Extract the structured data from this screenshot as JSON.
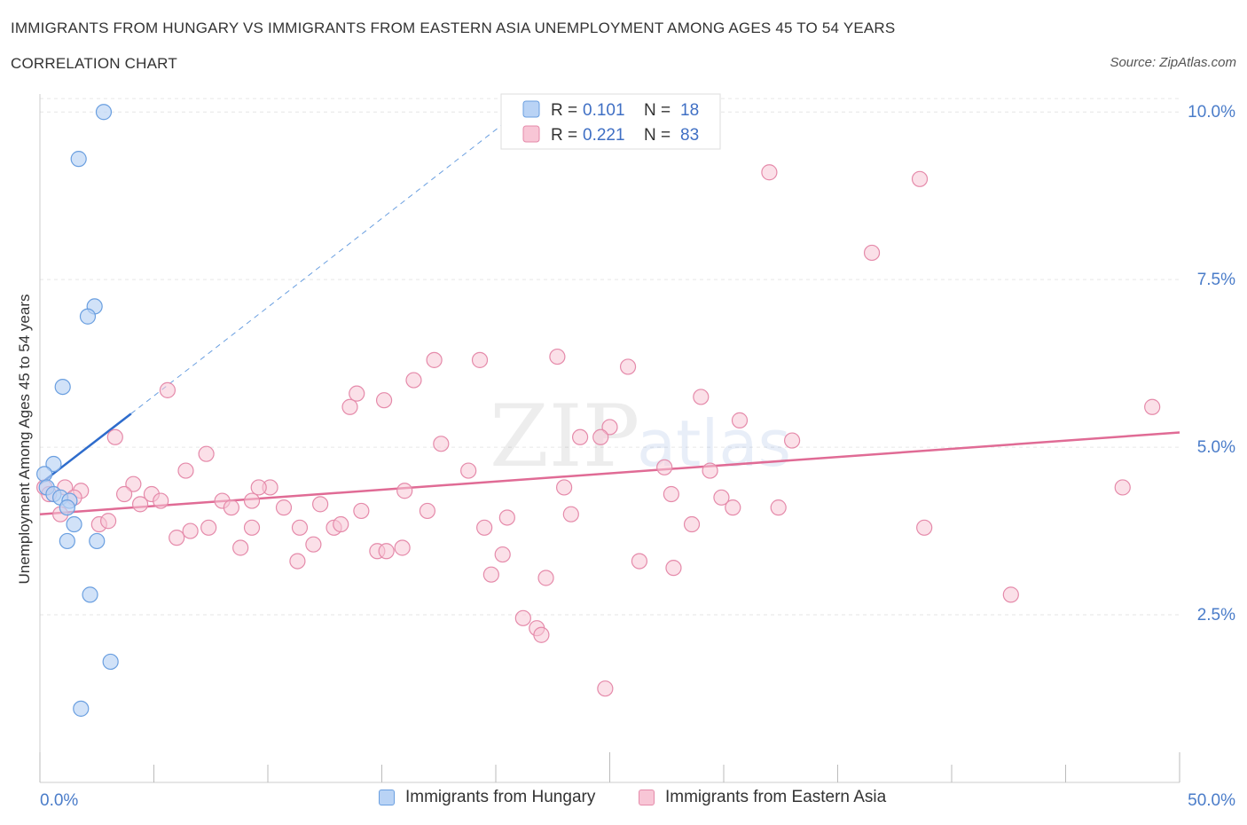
{
  "header": {
    "title": "IMMIGRANTS FROM HUNGARY VS IMMIGRANTS FROM EASTERN ASIA UNEMPLOYMENT AMONG AGES 45 TO 54 YEARS",
    "subtitle": "CORRELATION CHART",
    "source": "Source: ZipAtlas.com"
  },
  "colors": {
    "hungary_fill": "#b9d3f5",
    "hungary_stroke": "#6a9fe0",
    "hungary_line": "#2e6ccc",
    "asia_fill": "#f8c6d6",
    "asia_stroke": "#e58aaa",
    "asia_line": "#e06b95",
    "axis_label": "#4a7cc9",
    "grid": "#e6e6e6"
  },
  "legend_top": {
    "rows": [
      {
        "r_label": "R =",
        "r_value": "0.101",
        "n_label": "N =",
        "n_value": "18"
      },
      {
        "r_label": "R =",
        "r_value": "0.221",
        "n_label": "N =",
        "n_value": "83"
      }
    ]
  },
  "legend_bottom": {
    "items": [
      "Immigrants from Hungary",
      "Immigrants from Eastern Asia"
    ]
  },
  "watermark": {
    "zip": "ZIP",
    "atlas": "atlas"
  },
  "chart_data": {
    "type": "scatter",
    "title": "IMMIGRANTS FROM HUNGARY VS IMMIGRANTS FROM EASTERN ASIA UNEMPLOYMENT AMONG AGES 45 TO 54 YEARS",
    "ylabel": "Unemployment Among Ages 45 to 54 years",
    "xlabel": "",
    "xlim": [
      0,
      50
    ],
    "ylim": [
      0,
      10.4
    ],
    "x_tick_labels": [
      "0.0%",
      "50.0%"
    ],
    "y_ticks": [
      2.5,
      5.0,
      7.5,
      10.0
    ],
    "y_tick_labels": [
      "2.5%",
      "5.0%",
      "7.5%",
      "10.0%"
    ],
    "grid": true,
    "series": [
      {
        "name": "Immigrants from Hungary",
        "R": 0.101,
        "N": 18,
        "trend": {
          "x0": 0.0,
          "y0": 4.45,
          "x1": 4.0,
          "y1": 5.5,
          "dashed_to_x": 21.0,
          "dashed_to_y": 10.0
        },
        "points": [
          [
            2.8,
            10.0
          ],
          [
            1.7,
            9.3
          ],
          [
            2.4,
            7.1
          ],
          [
            2.1,
            6.95
          ],
          [
            1.0,
            5.9
          ],
          [
            0.6,
            4.75
          ],
          [
            0.2,
            4.6
          ],
          [
            0.3,
            4.4
          ],
          [
            0.6,
            4.3
          ],
          [
            0.9,
            4.25
          ],
          [
            1.3,
            4.2
          ],
          [
            1.2,
            4.1
          ],
          [
            1.5,
            3.85
          ],
          [
            1.2,
            3.6
          ],
          [
            2.5,
            3.6
          ],
          [
            2.2,
            2.8
          ],
          [
            3.1,
            1.8
          ],
          [
            1.8,
            1.1
          ]
        ]
      },
      {
        "name": "Immigrants from Eastern Asia",
        "R": 0.221,
        "N": 83,
        "trend": {
          "x0": 0.0,
          "y0": 4.0,
          "x1": 50.0,
          "y1": 5.22
        },
        "points": [
          [
            32.0,
            9.1
          ],
          [
            38.6,
            9.0
          ],
          [
            36.5,
            7.9
          ],
          [
            22.7,
            6.35
          ],
          [
            17.3,
            6.3
          ],
          [
            19.3,
            6.3
          ],
          [
            25.8,
            6.2
          ],
          [
            16.4,
            6.0
          ],
          [
            5.6,
            5.85
          ],
          [
            13.9,
            5.8
          ],
          [
            15.1,
            5.7
          ],
          [
            13.6,
            5.6
          ],
          [
            48.8,
            5.6
          ],
          [
            29.0,
            5.75
          ],
          [
            30.7,
            5.4
          ],
          [
            25.0,
            5.3
          ],
          [
            3.3,
            5.15
          ],
          [
            23.7,
            5.15
          ],
          [
            24.6,
            5.15
          ],
          [
            17.6,
            5.05
          ],
          [
            33.0,
            5.1
          ],
          [
            7.3,
            4.9
          ],
          [
            18.8,
            4.65
          ],
          [
            6.4,
            4.65
          ],
          [
            27.4,
            4.7
          ],
          [
            29.4,
            4.65
          ],
          [
            1.1,
            4.4
          ],
          [
            1.8,
            4.35
          ],
          [
            4.1,
            4.45
          ],
          [
            10.1,
            4.4
          ],
          [
            9.6,
            4.4
          ],
          [
            23.0,
            4.4
          ],
          [
            47.5,
            4.4
          ],
          [
            3.7,
            4.3
          ],
          [
            4.9,
            4.3
          ],
          [
            8.0,
            4.2
          ],
          [
            9.3,
            4.2
          ],
          [
            16.0,
            4.35
          ],
          [
            1.5,
            4.25
          ],
          [
            4.4,
            4.15
          ],
          [
            5.3,
            4.2
          ],
          [
            8.4,
            4.1
          ],
          [
            10.7,
            4.1
          ],
          [
            12.3,
            4.15
          ],
          [
            14.1,
            4.05
          ],
          [
            17.0,
            4.05
          ],
          [
            27.7,
            4.3
          ],
          [
            29.9,
            4.25
          ],
          [
            30.4,
            4.1
          ],
          [
            32.4,
            4.1
          ],
          [
            0.9,
            4.0
          ],
          [
            23.3,
            4.0
          ],
          [
            20.5,
            3.95
          ],
          [
            2.6,
            3.85
          ],
          [
            3.0,
            3.9
          ],
          [
            9.3,
            3.8
          ],
          [
            11.4,
            3.8
          ],
          [
            12.9,
            3.8
          ],
          [
            13.2,
            3.85
          ],
          [
            19.5,
            3.8
          ],
          [
            28.6,
            3.85
          ],
          [
            38.8,
            3.8
          ],
          [
            7.4,
            3.8
          ],
          [
            6.6,
            3.75
          ],
          [
            6.0,
            3.65
          ],
          [
            12.0,
            3.55
          ],
          [
            8.8,
            3.5
          ],
          [
            14.8,
            3.45
          ],
          [
            15.2,
            3.45
          ],
          [
            15.9,
            3.5
          ],
          [
            20.3,
            3.4
          ],
          [
            11.3,
            3.3
          ],
          [
            26.3,
            3.3
          ],
          [
            27.8,
            3.2
          ],
          [
            19.8,
            3.1
          ],
          [
            22.2,
            3.05
          ],
          [
            42.6,
            2.8
          ],
          [
            21.2,
            2.45
          ],
          [
            21.8,
            2.3
          ],
          [
            22.0,
            2.2
          ],
          [
            24.8,
            1.4
          ],
          [
            0.2,
            4.4
          ],
          [
            0.4,
            4.3
          ]
        ]
      }
    ]
  }
}
